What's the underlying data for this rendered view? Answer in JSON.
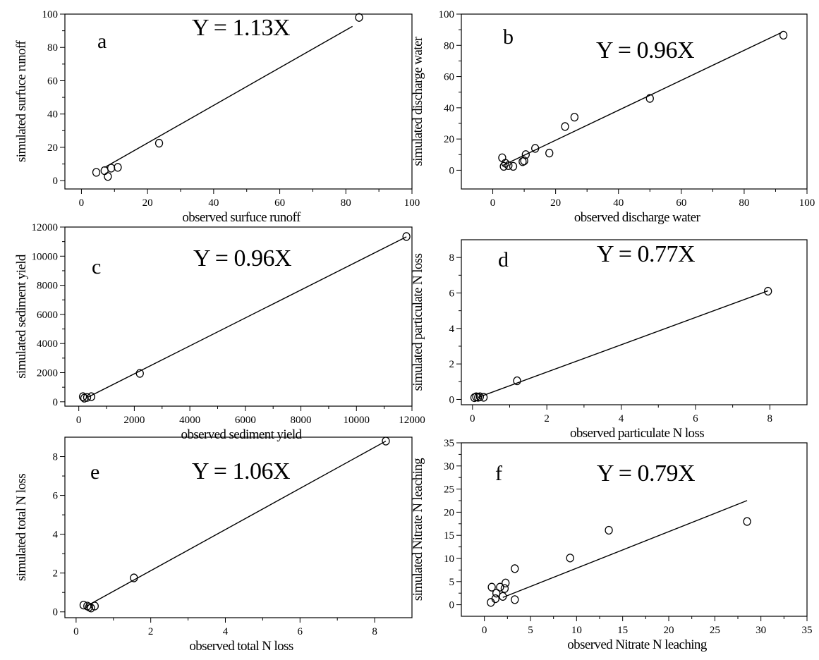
{
  "chart_data": [
    {
      "type": "scatter",
      "panel_label": "a",
      "equation": "Y = 1.13X",
      "xlabel": "observed surfuce runoff",
      "ylabel": "simulated surfuce runoff",
      "xlim": [
        -5,
        100
      ],
      "ylim": [
        -5,
        100
      ],
      "xticks": [
        0,
        20,
        40,
        60,
        80,
        100
      ],
      "yticks": [
        0,
        20,
        40,
        60,
        80,
        100
      ],
      "x": [
        4.5,
        7,
        8,
        9,
        11,
        23.5,
        84
      ],
      "y": [
        5,
        6,
        2.5,
        7.5,
        8,
        22.5,
        98
      ],
      "fit": {
        "slope": 1.13,
        "x": [
          7,
          82
        ]
      }
    },
    {
      "type": "scatter",
      "panel_label": "b",
      "equation": "Y = 0.96X",
      "xlabel": "observed discharge water",
      "ylabel": "simulated discharge water",
      "xlim": [
        -10,
        100
      ],
      "ylim": [
        -12,
        100
      ],
      "xticks": [
        0,
        20,
        40,
        60,
        80,
        100
      ],
      "yticks": [
        0,
        20,
        40,
        60,
        80,
        100
      ],
      "x": [
        3,
        3.5,
        4,
        5,
        6.5,
        9.5,
        10,
        10.5,
        13.5,
        18,
        23,
        26,
        50,
        92.5
      ],
      "y": [
        8,
        2.5,
        4.5,
        3,
        2.5,
        5.5,
        6,
        10,
        14,
        11,
        28,
        34,
        46,
        86.5
      ],
      "fit": {
        "slope": 0.96,
        "x": [
          3,
          92
        ]
      }
    },
    {
      "type": "scatter",
      "panel_label": "c",
      "equation": "Y = 0.96X",
      "xlabel": "observed sediment yield",
      "ylabel": "simulated sediment yield",
      "xlim": [
        -500,
        12000
      ],
      "ylim": [
        -300,
        12000
      ],
      "xticks": [
        0,
        2000,
        4000,
        6000,
        8000,
        10000,
        12000
      ],
      "yticks": [
        0,
        2000,
        4000,
        6000,
        8000,
        10000,
        12000
      ],
      "x": [
        150,
        200,
        300,
        450,
        2200,
        11800
      ],
      "y": [
        350,
        250,
        300,
        350,
        1950,
        11350
      ],
      "fit": {
        "slope": 0.96,
        "x": [
          300,
          11800
        ]
      }
    },
    {
      "type": "scatter",
      "panel_label": "d",
      "equation": "Y = 0.77X",
      "xlabel": "observed particulate N loss",
      "ylabel": "simulated particulate N loss",
      "xlim": [
        -0.3,
        9
      ],
      "ylim": [
        -0.3,
        9
      ],
      "xticks": [
        0,
        2,
        4,
        6,
        8
      ],
      "yticks": [
        0,
        2,
        4,
        6,
        8
      ],
      "x": [
        0.05,
        0.1,
        0.15,
        0.2,
        0.3,
        1.2,
        7.95
      ],
      "y": [
        0.1,
        0.15,
        0.12,
        0.15,
        0.12,
        1.05,
        6.1
      ],
      "fit": {
        "slope": 0.77,
        "x": [
          0.15,
          7.95
        ]
      }
    },
    {
      "type": "scatter",
      "panel_label": "e",
      "equation": "Y = 1.06X",
      "xlabel": "observed total N loss",
      "ylabel": "simulated total N loss",
      "xlim": [
        -0.3,
        9
      ],
      "ylim": [
        -0.3,
        9
      ],
      "xticks": [
        0,
        2,
        4,
        6,
        8
      ],
      "yticks": [
        0,
        2,
        4,
        6,
        8
      ],
      "x": [
        0.2,
        0.3,
        0.35,
        0.4,
        0.5,
        1.55,
        8.3
      ],
      "y": [
        0.35,
        0.3,
        0.25,
        0.2,
        0.3,
        1.75,
        8.8
      ],
      "fit": {
        "slope": 1.06,
        "x": [
          0.3,
          8.3
        ]
      }
    },
    {
      "type": "scatter",
      "panel_label": "f",
      "equation": "Y = 0.79X",
      "xlabel": "observed Nitrate N leaching",
      "ylabel": "simulated Nitrate N leaching",
      "xlim": [
        -2.5,
        35
      ],
      "ylim": [
        -2.5,
        35
      ],
      "xticks": [
        0,
        5,
        10,
        15,
        20,
        25,
        30,
        35
      ],
      "yticks": [
        0,
        5,
        10,
        15,
        20,
        25,
        30,
        35
      ],
      "x": [
        0.7,
        0.8,
        1.2,
        1.3,
        1.7,
        2,
        2.2,
        2.3,
        3.3,
        3.3,
        9.3,
        13.5,
        28.5
      ],
      "y": [
        0.5,
        3.8,
        1.3,
        2.5,
        3.8,
        1.8,
        3.5,
        4.7,
        1.1,
        7.8,
        10.1,
        16.1,
        18
      ],
      "fit": {
        "slope": 0.79,
        "x": [
          2,
          28.5
        ]
      }
    }
  ]
}
